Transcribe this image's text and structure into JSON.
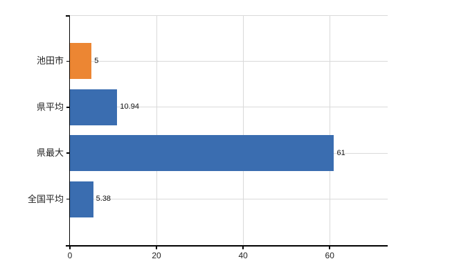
{
  "chart_data": {
    "type": "bar",
    "orientation": "horizontal",
    "title": "",
    "xlabel": "",
    "ylabel": "",
    "categories": [
      "池田市",
      "県平均",
      "県最大",
      "全国平均"
    ],
    "values": [
      5,
      10.94,
      61,
      5.38
    ],
    "value_labels": [
      "5",
      "10.94",
      "61",
      "5.38"
    ],
    "series": [
      {
        "name": "値",
        "values": [
          5,
          10.94,
          61,
          5.38
        ],
        "colors": [
          "#EC8633",
          "#3A6DB0",
          "#3A6DB0",
          "#3A6DB0"
        ]
      }
    ],
    "x_ticks": [
      0,
      20,
      40,
      60
    ],
    "x_tick_labels": [
      "0",
      "20",
      "40",
      "60"
    ],
    "xlim": [
      0,
      73.4
    ],
    "grid": true,
    "legend": false,
    "annotations": []
  },
  "colors": {
    "highlight_bar": "#EC8633",
    "default_bar": "#3A6DB0",
    "gridline": "#d9d9d9",
    "axis": "#000000",
    "text": "#222222",
    "background": "#ffffff"
  }
}
